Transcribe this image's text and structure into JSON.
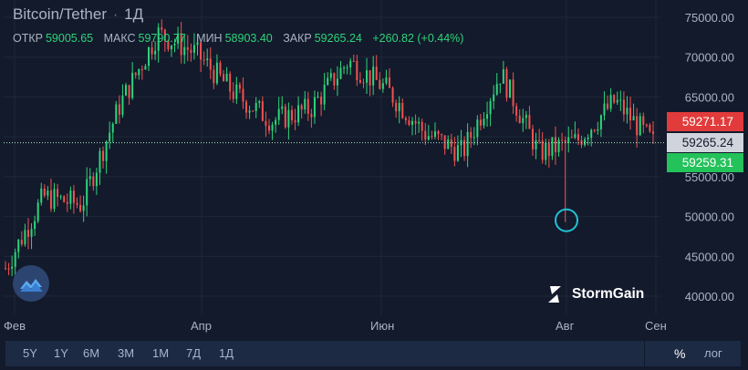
{
  "header": {
    "symbol": "Bitcoin/Tether",
    "separator": "·",
    "interval": "1Д"
  },
  "ohlc": {
    "open_label": "ОТКР",
    "open": "59005.65",
    "high_label": "МАКС",
    "high": "59790.77",
    "low_label": "МИН",
    "low": "58903.40",
    "close_label": "ЗАКР",
    "close": "59265.24",
    "change": "+260.82 (+0.44%)"
  },
  "chart_data": {
    "type": "candlestick",
    "x_labels": [
      "Фев",
      "Апр",
      "Июн",
      "Авг",
      "Сен"
    ],
    "y_ticks": [
      "75000.00",
      "70000.00",
      "65000.00",
      "60000.00",
      "55000.00",
      "50000.00",
      "45000.00",
      "40000.00"
    ],
    "y_range": [
      38000,
      77000
    ],
    "price_labels": {
      "upper": "59271.17",
      "current": "59265.24",
      "lower": "59259.31"
    },
    "current_price": 59265.24,
    "highlight_low": 49300,
    "colors": {
      "up": "#2ed47a",
      "down": "#ef5350",
      "accent": "#22c1d6",
      "upper_tag": "#e23b3b",
      "current_tag": "#d1d4dc",
      "lower_tag": "#23c25a"
    },
    "approx_closes": [
      {
        "x": "Фев",
        "y": 43500
      },
      {
        "x": "",
        "y": 52500
      },
      {
        "x": "",
        "y": 51500
      },
      {
        "x": "",
        "y": 64000
      },
      {
        "x": "",
        "y": 73000
      },
      {
        "x": "Апр",
        "y": 70500
      },
      {
        "x": "",
        "y": 65500
      },
      {
        "x": "",
        "y": 62000
      },
      {
        "x": "",
        "y": 63500
      },
      {
        "x": "Июн",
        "y": 69500
      },
      {
        "x": "",
        "y": 66000
      },
      {
        "x": "",
        "y": 60500
      },
      {
        "x": "",
        "y": 58000
      },
      {
        "x": "",
        "y": 68000
      },
      {
        "x": "Авг",
        "y": 58000
      },
      {
        "x": "",
        "y": 59500
      },
      {
        "x": "",
        "y": 64500
      },
      {
        "x": "Сен",
        "y": 59265
      }
    ]
  },
  "watermark": {
    "brand": "StormGain"
  },
  "bottom_bar": {
    "timeframes": [
      "5Y",
      "1Y",
      "6M",
      "3M",
      "1M",
      "7Д",
      "1Д"
    ],
    "percent": "%",
    "log": "лог"
  }
}
